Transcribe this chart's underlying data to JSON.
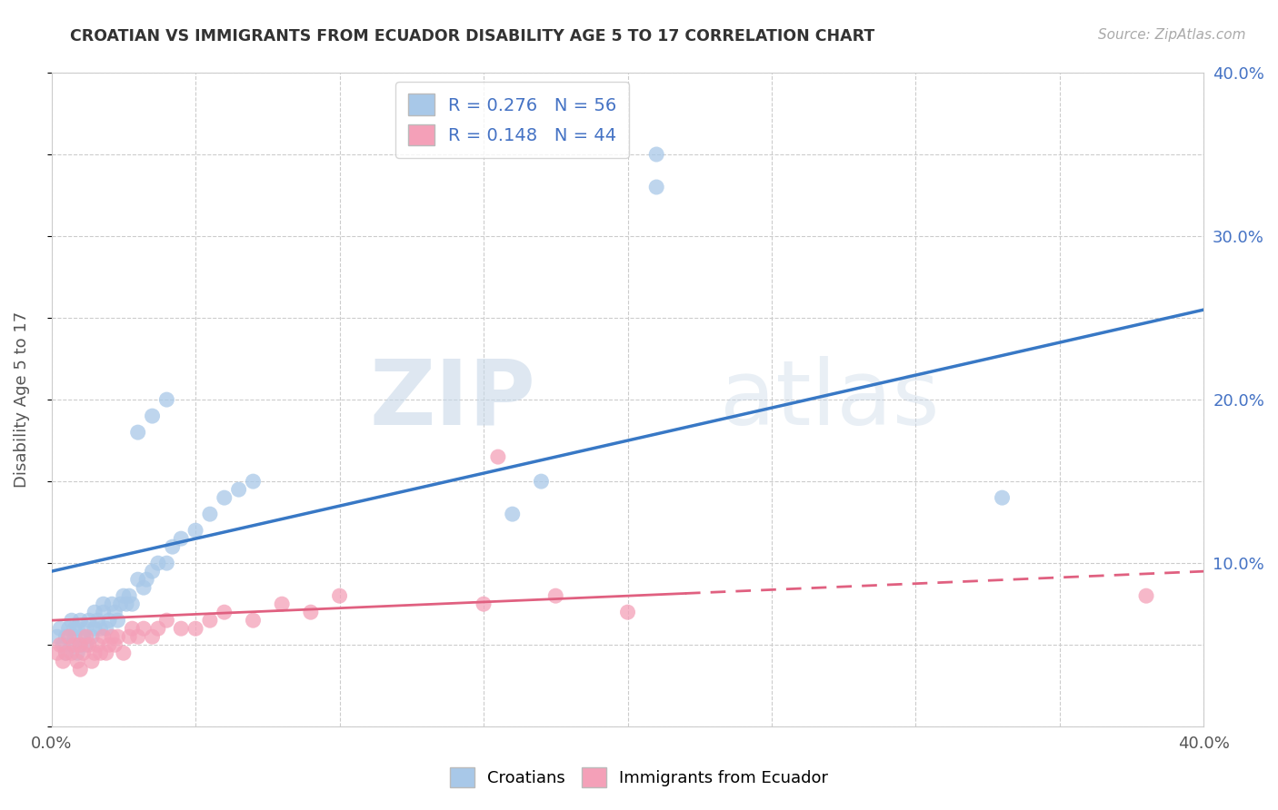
{
  "title": "CROATIAN VS IMMIGRANTS FROM ECUADOR DISABILITY AGE 5 TO 17 CORRELATION CHART",
  "source": "Source: ZipAtlas.com",
  "ylabel": "Disability Age 5 to 17",
  "xlim": [
    0.0,
    0.4
  ],
  "ylim": [
    0.0,
    0.4
  ],
  "xticks": [
    0.0,
    0.05,
    0.1,
    0.15,
    0.2,
    0.25,
    0.3,
    0.35,
    0.4
  ],
  "yticks": [
    0.0,
    0.05,
    0.1,
    0.15,
    0.2,
    0.25,
    0.3,
    0.35,
    0.4
  ],
  "blue_R": 0.276,
  "blue_N": 56,
  "pink_R": 0.148,
  "pink_N": 44,
  "blue_color": "#a8c8e8",
  "pink_color": "#f4a0b8",
  "blue_line_color": "#3878c5",
  "pink_line_color": "#e06080",
  "legend_label1": "Croatians",
  "legend_label2": "Immigrants from Ecuador",
  "watermark_zip": "ZIP",
  "watermark_atlas": "atlas",
  "background_color": "#ffffff",
  "blue_scatter_x": [
    0.002,
    0.003,
    0.004,
    0.005,
    0.005,
    0.006,
    0.007,
    0.007,
    0.008,
    0.008,
    0.009,
    0.009,
    0.01,
    0.01,
    0.011,
    0.012,
    0.012,
    0.013,
    0.014,
    0.015,
    0.015,
    0.016,
    0.017,
    0.018,
    0.018,
    0.019,
    0.02,
    0.021,
    0.022,
    0.023,
    0.024,
    0.025,
    0.026,
    0.027,
    0.028,
    0.03,
    0.032,
    0.033,
    0.035,
    0.037,
    0.04,
    0.042,
    0.045,
    0.05,
    0.055,
    0.06,
    0.065,
    0.07,
    0.03,
    0.035,
    0.04,
    0.16,
    0.17,
    0.21,
    0.21,
    0.33
  ],
  "blue_scatter_y": [
    0.055,
    0.06,
    0.05,
    0.045,
    0.055,
    0.06,
    0.05,
    0.065,
    0.055,
    0.06,
    0.045,
    0.06,
    0.05,
    0.065,
    0.055,
    0.06,
    0.05,
    0.065,
    0.055,
    0.06,
    0.07,
    0.065,
    0.06,
    0.07,
    0.075,
    0.06,
    0.065,
    0.075,
    0.07,
    0.065,
    0.075,
    0.08,
    0.075,
    0.08,
    0.075,
    0.09,
    0.085,
    0.09,
    0.095,
    0.1,
    0.1,
    0.11,
    0.115,
    0.12,
    0.13,
    0.14,
    0.145,
    0.15,
    0.18,
    0.19,
    0.2,
    0.13,
    0.15,
    0.35,
    0.33,
    0.14
  ],
  "pink_scatter_x": [
    0.002,
    0.003,
    0.004,
    0.005,
    0.006,
    0.007,
    0.008,
    0.009,
    0.01,
    0.01,
    0.011,
    0.012,
    0.013,
    0.014,
    0.015,
    0.016,
    0.017,
    0.018,
    0.019,
    0.02,
    0.021,
    0.022,
    0.023,
    0.025,
    0.027,
    0.028,
    0.03,
    0.032,
    0.035,
    0.037,
    0.04,
    0.045,
    0.05,
    0.055,
    0.06,
    0.07,
    0.08,
    0.09,
    0.1,
    0.15,
    0.155,
    0.175,
    0.2,
    0.38
  ],
  "pink_scatter_y": [
    0.045,
    0.05,
    0.04,
    0.045,
    0.055,
    0.045,
    0.05,
    0.04,
    0.035,
    0.05,
    0.045,
    0.055,
    0.05,
    0.04,
    0.045,
    0.05,
    0.045,
    0.055,
    0.045,
    0.05,
    0.055,
    0.05,
    0.055,
    0.045,
    0.055,
    0.06,
    0.055,
    0.06,
    0.055,
    0.06,
    0.065,
    0.06,
    0.06,
    0.065,
    0.07,
    0.065,
    0.075,
    0.07,
    0.08,
    0.075,
    0.165,
    0.08,
    0.07,
    0.08
  ],
  "blue_trend_x0": 0.0,
  "blue_trend_y0": 0.095,
  "blue_trend_x1": 0.4,
  "blue_trend_y1": 0.255,
  "pink_trend_x0": 0.0,
  "pink_trend_y0": 0.065,
  "pink_trend_x1": 0.4,
  "pink_trend_y1": 0.095
}
